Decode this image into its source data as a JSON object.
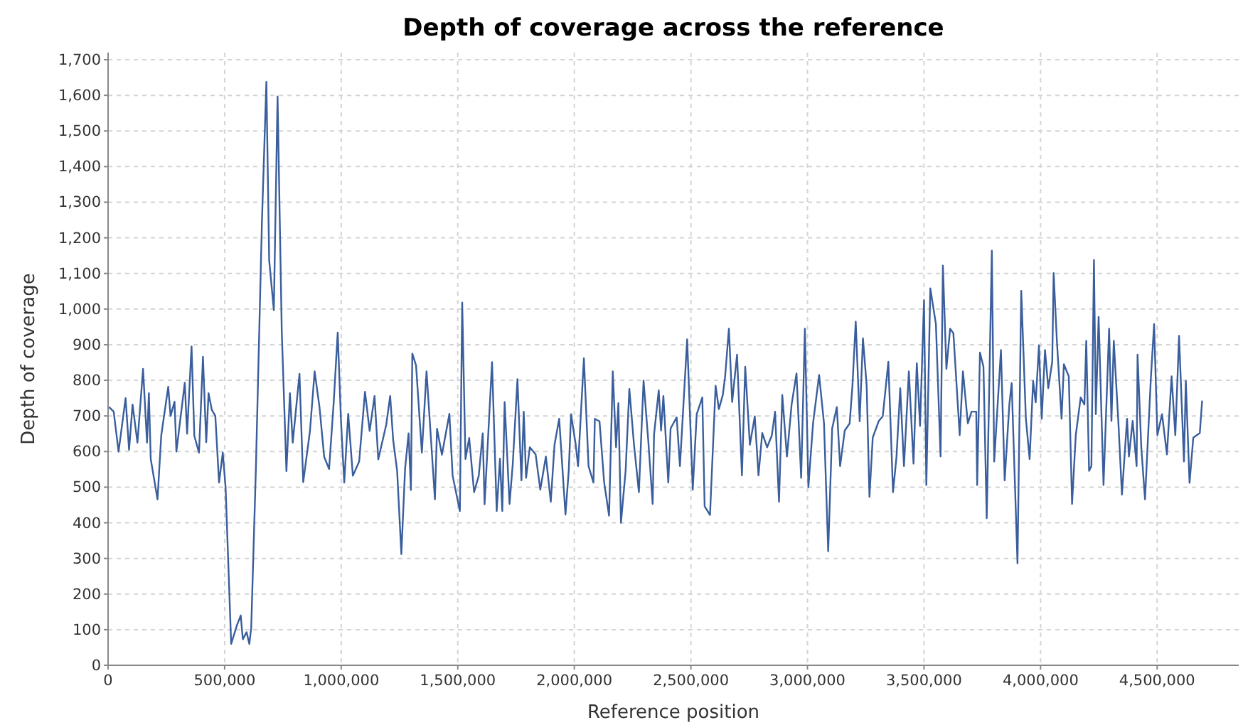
{
  "chart_data": {
    "type": "line",
    "title": "Depth of coverage across the reference",
    "xlabel": "Reference position",
    "ylabel": "Depth of coverage",
    "xlim": [
      0,
      4850000
    ],
    "ylim": [
      0,
      1720
    ],
    "xticks": [
      0,
      {
        "value": 500000,
        "label": "500,000"
      },
      {
        "value": 1000000,
        "label": "1,000,000"
      },
      {
        "value": 1500000,
        "label": "1,500,000"
      },
      {
        "value": 2000000,
        "label": "2,000,000"
      },
      {
        "value": 2500000,
        "label": "2,500,000"
      },
      {
        "value": 3000000,
        "label": "3,000,000"
      },
      {
        "value": 3500000,
        "label": "3,500,000"
      },
      {
        "value": 4000000,
        "label": "4,000,000"
      },
      {
        "value": 4500000,
        "label": "4,500,000"
      }
    ],
    "yticks": [
      0,
      100,
      200,
      300,
      400,
      500,
      600,
      700,
      800,
      900,
      {
        "value": 1000,
        "label": "1,000"
      },
      {
        "value": 1100,
        "label": "1,100"
      },
      {
        "value": 1200,
        "label": "1,200"
      },
      {
        "value": 1300,
        "label": "1,300"
      },
      {
        "value": 1400,
        "label": "1,400"
      },
      {
        "value": 1500,
        "label": "1,500"
      },
      {
        "value": 1600,
        "label": "1,600"
      },
      {
        "value": 1700,
        "label": "1,700"
      }
    ],
    "grid": true,
    "marker": "none",
    "line_style": "solid",
    "series": [
      {
        "color": "#3a5e9c",
        "x": [
          4000,
          24000,
          45000,
          75000,
          90000,
          105000,
          126000,
          150000,
          167000,
          175000,
          183000,
          212000,
          228000,
          258000,
          268000,
          285000,
          293000,
          329000,
          339000,
          358000,
          370000,
          390000,
          407000,
          421000,
          431000,
          445000,
          460000,
          476000,
          492000,
          504000,
          528000,
          553000,
          569000,
          578000,
          594000,
          606000,
          614000,
          634000,
          660000,
          679000,
          691000,
          711000,
          727000,
          745000,
          765000,
          780000,
          792000,
          821000,
          837000,
          866000,
          886000,
          907000,
          927000,
          948000,
          968000,
          985000,
          999000,
          1013000,
          1030000,
          1050000,
          1077000,
          1102000,
          1122000,
          1143000,
          1159000,
          1193000,
          1210000,
          1223000,
          1240000,
          1258000,
          1274000,
          1289000,
          1299000,
          1305000,
          1321000,
          1346000,
          1366000,
          1402000,
          1411000,
          1432000,
          1464000,
          1478000,
          1509000,
          1519000,
          1533000,
          1549000,
          1570000,
          1590000,
          1607000,
          1615000,
          1647000,
          1667000,
          1681000,
          1691000,
          1701000,
          1722000,
          1736000,
          1756000,
          1773000,
          1783000,
          1793000,
          1809000,
          1834000,
          1854000,
          1878000,
          1899000,
          1915000,
          1935000,
          1962000,
          1976000,
          1986000,
          2006000,
          2016000,
          2041000,
          2061000,
          2082000,
          2088000,
          2108000,
          2128000,
          2149000,
          2165000,
          2179000,
          2189000,
          2200000,
          2220000,
          2236000,
          2256000,
          2277000,
          2297000,
          2317000,
          2336000,
          2342000,
          2362000,
          2372000,
          2382000,
          2403000,
          2413000,
          2439000,
          2453000,
          2484000,
          2508000,
          2525000,
          2549000,
          2559000,
          2582000,
          2606000,
          2620000,
          2637000,
          2647000,
          2663000,
          2677000,
          2698000,
          2719000,
          2733000,
          2753000,
          2774000,
          2790000,
          2806000,
          2827000,
          2847000,
          2861000,
          2878000,
          2892000,
          2912000,
          2932000,
          2953000,
          2973000,
          2989000,
          3004000,
          3024000,
          3050000,
          3071000,
          3089000,
          3106000,
          3126000,
          3140000,
          3160000,
          3181000,
          3193000,
          3207000,
          3224000,
          3238000,
          3254000,
          3266000,
          3280000,
          3306000,
          3323000,
          3347000,
          3367000,
          3382000,
          3398000,
          3414000,
          3435000,
          3455000,
          3469000,
          3483000,
          3500000,
          3510000,
          3527000,
          3551000,
          3571000,
          3581000,
          3596000,
          3612000,
          3626000,
          3653000,
          3667000,
          3688000,
          3704000,
          3724000,
          3728000,
          3740000,
          3755000,
          3769000,
          3791000,
          3801000,
          3830000,
          3846000,
          3866000,
          3876000,
          3901000,
          3917000,
          3937000,
          3953000,
          3968000,
          3979000,
          3993000,
          4005000,
          4019000,
          4033000,
          4050000,
          4056000,
          4070000,
          4090000,
          4100000,
          4121000,
          4135000,
          4151000,
          4172000,
          4188000,
          4196000,
          4208000,
          4218000,
          4229000,
          4237000,
          4249000,
          4270000,
          4294000,
          4304000,
          4314000,
          4334000,
          4349000,
          4371000,
          4379000,
          4395000,
          4412000,
          4416000,
          4432000,
          4448000,
          4473000,
          4487000,
          4501000,
          4521000,
          4542000,
          4562000,
          4578000,
          4594000,
          4615000,
          4623000,
          4639000,
          4655000,
          4683000,
          4693000
        ],
        "values": [
          725,
          712,
          600,
          750,
          605,
          732,
          625,
          832,
          625,
          764,
          579,
          466,
          645,
          782,
          700,
          740,
          600,
          793,
          650,
          895,
          644,
          597,
          866,
          626,
          764,
          717,
          700,
          513,
          597,
          500,
          60,
          113,
          140,
          73,
          93,
          60,
          106,
          552,
          1247,
          1638,
          1137,
          997,
          1597,
          937,
          545,
          764,
          625,
          818,
          514,
          658,
          825,
          724,
          585,
          551,
          740,
          934,
          687,
          513,
          706,
          532,
          572,
          768,
          658,
          756,
          578,
          675,
          756,
          632,
          545,
          312,
          552,
          651,
          492,
          875,
          842,
          597,
          825,
          466,
          664,
          591,
          706,
          532,
          433,
          1018,
          579,
          638,
          486,
          532,
          651,
          452,
          851,
          433,
          580,
          433,
          739,
          453,
          566,
          803,
          519,
          712,
          526,
          612,
          592,
          493,
          586,
          459,
          619,
          692,
          423,
          546,
          705,
          619,
          559,
          862,
          559,
          513,
          692,
          685,
          513,
          420,
          825,
          612,
          736,
          400,
          546,
          776,
          619,
          486,
          799,
          632,
          453,
          648,
          772,
          659,
          756,
          513,
          665,
          696,
          559,
          915,
          493,
          705,
          752,
          446,
          422,
          785,
          719,
          759,
          812,
          945,
          739,
          872,
          533,
          838,
          619,
          699,
          533,
          652,
          612,
          645,
          712,
          459,
          759,
          586,
          732,
          819,
          526,
          945,
          500,
          679,
          815,
          679,
          320,
          665,
          725,
          559,
          659,
          679,
          785,
          965,
          685,
          918,
          785,
          473,
          639,
          686,
          699,
          852,
          486,
          586,
          778,
          559,
          825,
          566,
          848,
          672,
          1025,
          506,
          1058,
          958,
          586,
          1122,
          832,
          945,
          932,
          646,
          825,
          679,
          712,
          712,
          506,
          878,
          838,
          413,
          1164,
          572,
          885,
          519,
          732,
          792,
          286,
          1051,
          692,
          579,
          798,
          738,
          898,
          692,
          885,
          778,
          852,
          1101,
          911,
          692,
          845,
          811,
          453,
          646,
          752,
          732,
          911,
          546,
          559,
          1138,
          705,
          978,
          506,
          945,
          686,
          911,
          679,
          479,
          692,
          586,
          686,
          559,
          872,
          612,
          466,
          805,
          958,
          646,
          705,
          592,
          811,
          646,
          925,
          572,
          798,
          512,
          639,
          652,
          743
        ]
      }
    ]
  }
}
